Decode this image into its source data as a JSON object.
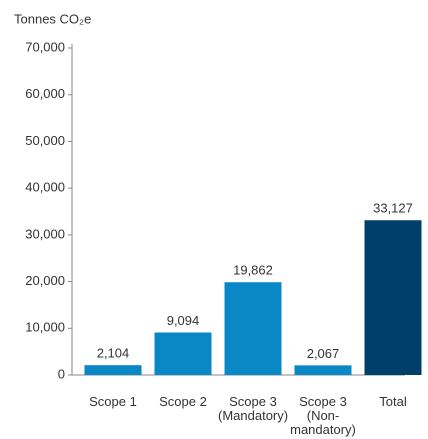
{
  "chart_data": {
    "type": "bar",
    "y_axis_label": "Tonnes CO₂e",
    "categories": [
      "Scope 1",
      "Scope 2",
      "Scope 3 (Mandatory)",
      "Scope 3 (Non-mandatory)",
      "Total"
    ],
    "values": [
      2104,
      9094,
      19862,
      2067,
      33127
    ],
    "value_labels": [
      "2,104",
      "9,094",
      "19,862",
      "2,067",
      "33,127"
    ],
    "colors": [
      "#0a87c5",
      "#0a87c5",
      "#0a87c5",
      "#0a87c5",
      "#003f6a"
    ],
    "ylim": [
      0,
      70000
    ],
    "yticks": [
      0,
      {
        "value": 10000,
        "label": "10,000"
      },
      {
        "value": 20000,
        "label": "20,000"
      },
      {
        "value": 30000,
        "label": "30,000"
      },
      {
        "value": 40000,
        "label": "40,000"
      },
      {
        "value": 50000,
        "label": "50,000"
      },
      {
        "value": 60000,
        "label": "60,000"
      },
      {
        "value": 70000,
        "label": "70,000"
      }
    ],
    "grid": false
  }
}
